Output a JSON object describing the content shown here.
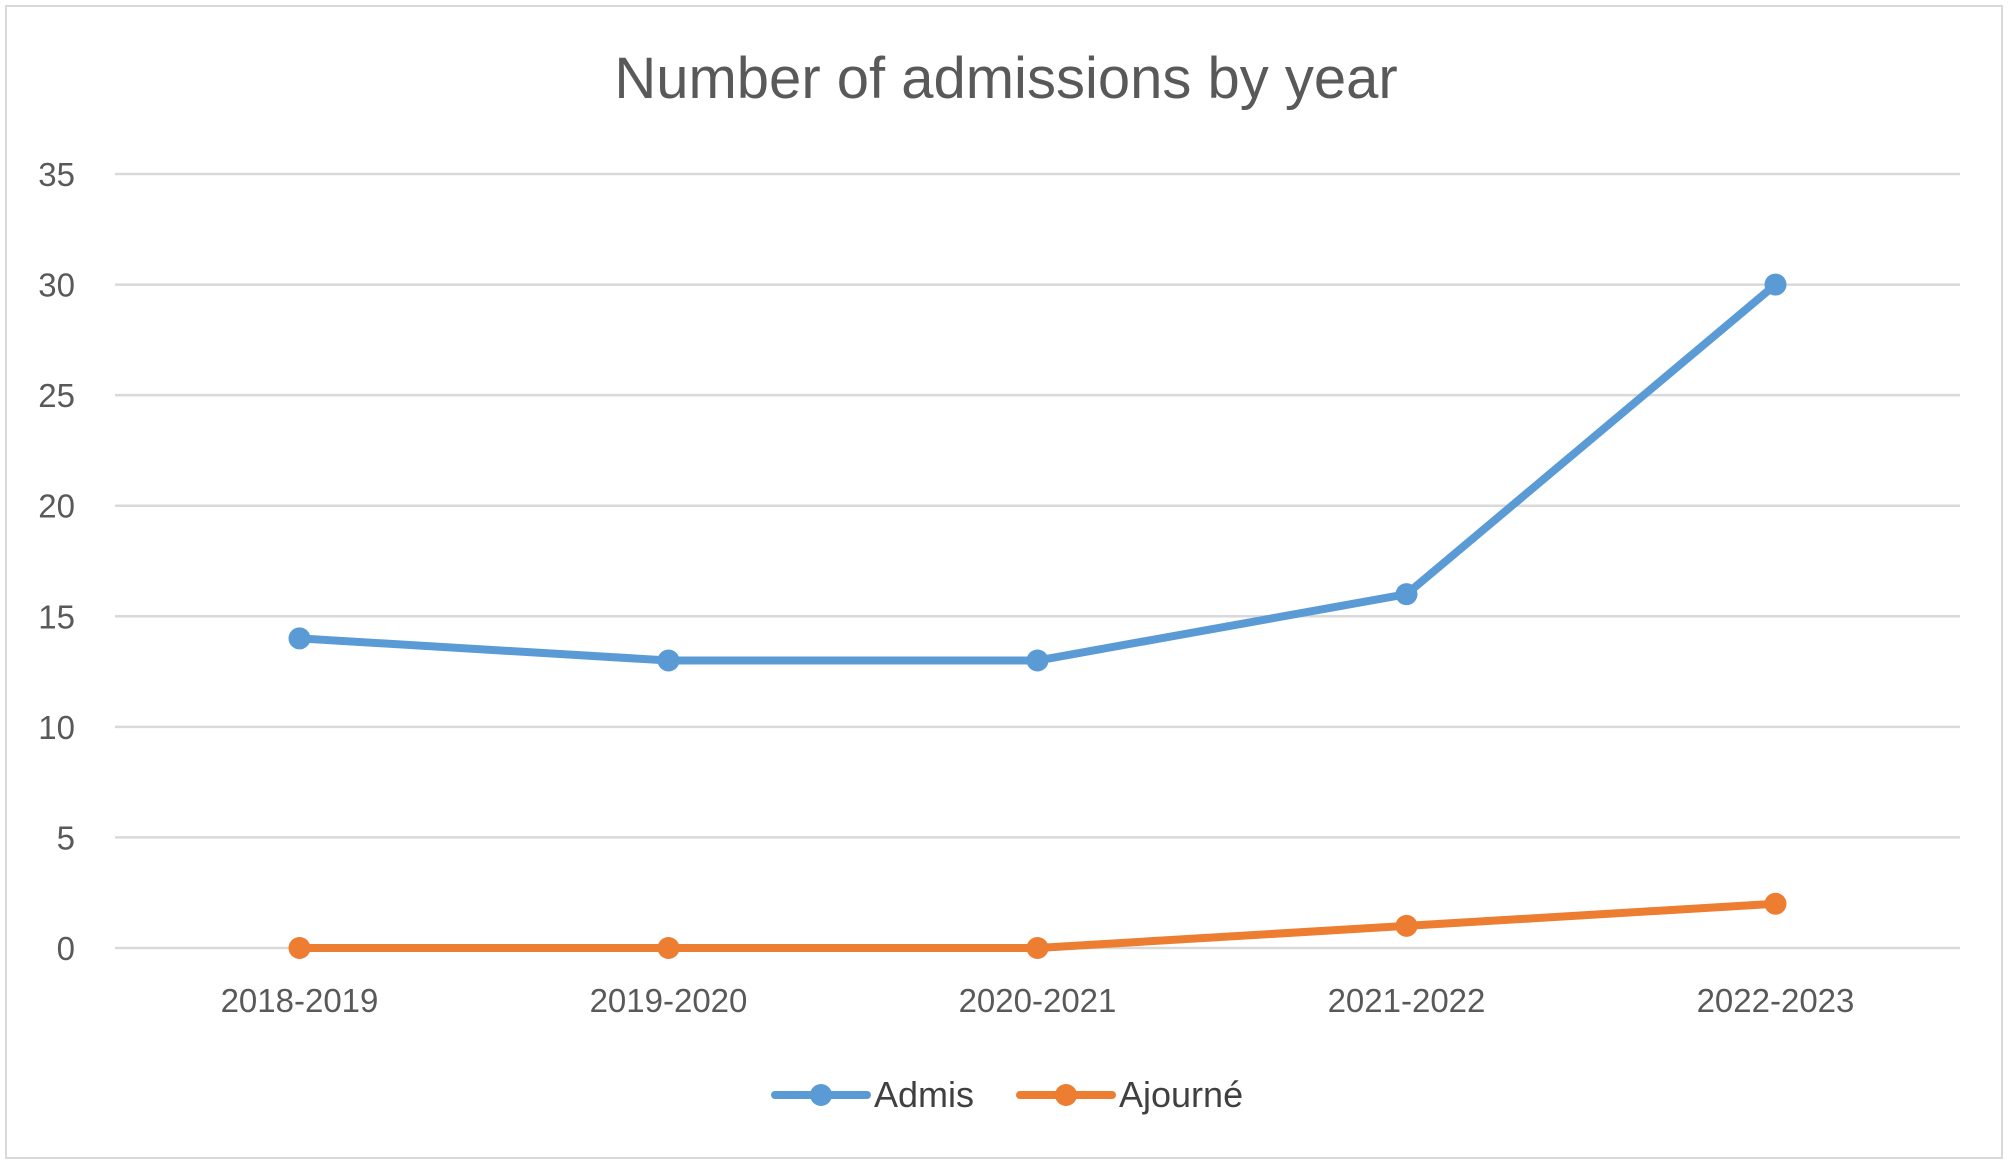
{
  "chart_data": {
    "type": "line",
    "title": "Number of admissions by year",
    "xlabel": "",
    "ylabel": "",
    "categories": [
      "2018-2019",
      "2019-2020",
      "2020-2021",
      "2021-2022",
      "2022-2023"
    ],
    "series": [
      {
        "name": "Admis",
        "color": "#5b9bd5",
        "values": [
          14,
          13,
          13,
          16,
          30
        ]
      },
      {
        "name": "Ajourné",
        "color": "#ed7d31",
        "values": [
          0,
          0,
          0,
          1,
          2
        ]
      }
    ],
    "ylim": [
      0,
      35
    ],
    "yticks": [
      "0",
      "5",
      "10",
      "15",
      "20",
      "25",
      "30",
      "35"
    ],
    "grid": true,
    "legend_position": "bottom"
  }
}
